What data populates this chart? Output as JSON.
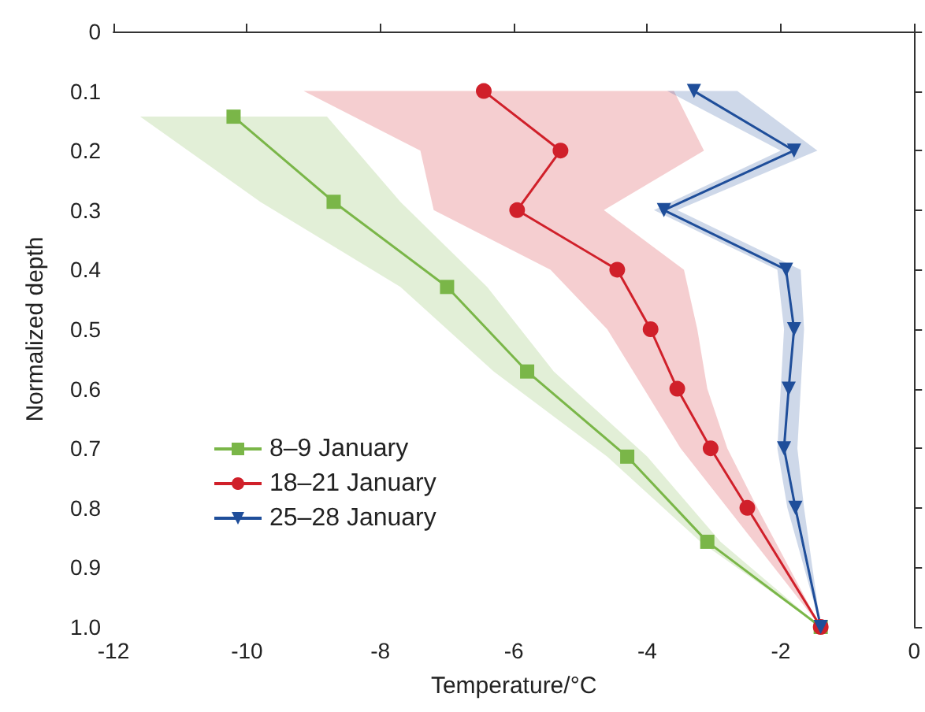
{
  "chart_data": {
    "type": "line",
    "orientation": "horizontal",
    "xlabel": "Temperature/°C",
    "ylabel": "Normalized depth",
    "xlim": [
      -12,
      0
    ],
    "xticks": [
      -12,
      -10,
      -8,
      -6,
      -4,
      -2,
      0
    ],
    "ylim": [
      1,
      0
    ],
    "yticks": [
      0,
      0.1,
      0.2,
      0.3,
      0.4,
      0.5,
      0.6,
      0.7,
      0.8,
      0.9,
      {
        "value": 1,
        "label": "1.0"
      }
    ],
    "legend": "bottom left",
    "grid": false,
    "series": [
      {
        "name": "8–9 January",
        "color": "#7ab648",
        "marker": "square",
        "x": [
          0.143,
          0.286,
          0.429,
          0.571,
          0.714,
          0.857,
          1.0
        ],
        "values": [
          -10.2,
          -8.7,
          -7.0,
          -5.8,
          -4.3,
          -3.1,
          -1.4
        ],
        "lower": [
          -11.6,
          -9.8,
          -7.7,
          -6.3,
          -4.6,
          -3.2,
          -1.4
        ],
        "upper": [
          -8.8,
          -7.7,
          -6.4,
          -5.4,
          -4.0,
          -2.9,
          -1.4
        ]
      },
      {
        "name": "18–21 January",
        "color": "#d0202a",
        "marker": "circle",
        "x": [
          0.1,
          0.2,
          0.3,
          0.4,
          0.5,
          0.6,
          0.7,
          0.8,
          1.0
        ],
        "values": [
          -6.45,
          -5.3,
          -5.95,
          -4.45,
          -3.95,
          -3.55,
          -3.05,
          -2.5,
          -1.4
        ],
        "lower": [
          -9.15,
          -7.4,
          -7.2,
          -5.45,
          -4.6,
          -4.05,
          -3.5,
          -2.8,
          -1.4
        ],
        "upper": [
          -3.6,
          -3.15,
          -4.65,
          -3.45,
          -3.25,
          -3.1,
          -2.8,
          -2.35,
          -1.4
        ]
      },
      {
        "name": "25–28 January",
        "color": "#1f4e9a",
        "marker": "triangle",
        "x": [
          0.1,
          0.2,
          0.3,
          0.4,
          0.5,
          0.6,
          0.7,
          0.8,
          1.0
        ],
        "values": [
          -3.3,
          -1.8,
          -3.75,
          -1.92,
          -1.8,
          -1.88,
          -1.95,
          -1.78,
          -1.4
        ],
        "lower": [
          -3.7,
          -2.0,
          -3.9,
          -2.05,
          -1.95,
          -2.0,
          -2.05,
          -1.9,
          -1.4
        ],
        "upper": [
          -2.65,
          -1.45,
          -3.55,
          -1.7,
          -1.65,
          -1.7,
          -1.75,
          -1.65,
          -1.4
        ]
      }
    ]
  }
}
